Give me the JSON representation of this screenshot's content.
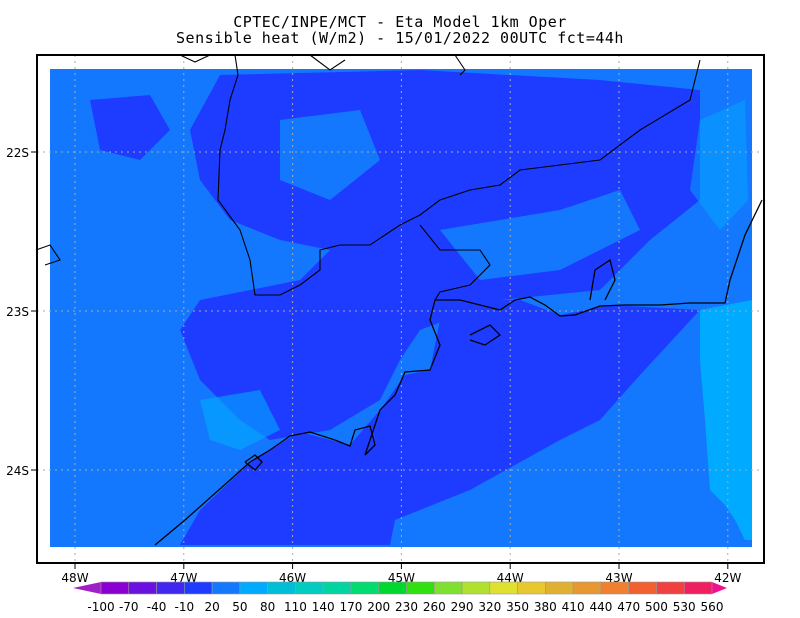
{
  "title": {
    "line1": "CPTEC/INPE/MCT -  Eta Model 1km Oper",
    "line2": "Sensible heat (W/m2) - 15/01/2022 00UTC fct=44h"
  },
  "map": {
    "lon_ticks": [
      "48W",
      "47W",
      "46W",
      "45W",
      "44W",
      "43W",
      "42W"
    ],
    "lat_ticks": [
      "22S",
      "23S",
      "24S"
    ],
    "grid": true,
    "colors": {
      "base": "#1478ff",
      "dark": "#1e3cff",
      "cyan": "#00aaff",
      "coast": "#000000"
    }
  },
  "colorbar": {
    "labels": [
      "-100",
      "-70",
      "-40",
      "-10",
      "20",
      "50",
      "80",
      "110",
      "140",
      "170",
      "200",
      "230",
      "260",
      "290",
      "320",
      "350",
      "380",
      "410",
      "440",
      "470",
      "500",
      "530",
      "560"
    ],
    "under_color": "#a020c8",
    "over_color": "#f01090",
    "colors": [
      "#8a00d0",
      "#6a10e0",
      "#4028f0",
      "#1e3cff",
      "#1478ff",
      "#00aaff",
      "#00bed8",
      "#00ccc0",
      "#00d4a0",
      "#00dc70",
      "#00d830",
      "#30e010",
      "#80e030",
      "#b0e030",
      "#e0e030",
      "#e8c830",
      "#e0b030",
      "#e89830",
      "#f08030",
      "#f06030",
      "#f04040",
      "#f02060"
    ]
  }
}
